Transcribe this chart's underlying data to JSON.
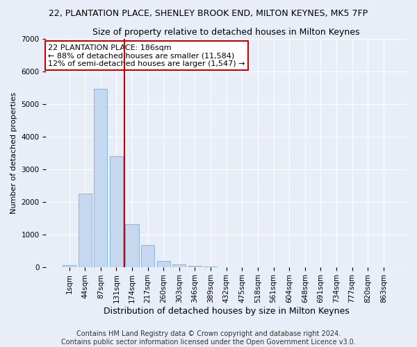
{
  "title": "22, PLANTATION PLACE, SHENLEY BROOK END, MILTON KEYNES, MK5 7FP",
  "subtitle": "Size of property relative to detached houses in Milton Keynes",
  "xlabel": "Distribution of detached houses by size in Milton Keynes",
  "ylabel": "Number of detached properties",
  "bar_color": "#c5d8f0",
  "bar_edge_color": "#7bafd4",
  "vline_color": "#cc0000",
  "vline_pos": 3.5,
  "annotation_text": "22 PLANTATION PLACE: 186sqm\n← 88% of detached houses are smaller (11,584)\n12% of semi-detached houses are larger (1,547) →",
  "annotation_box_color": "#ffffff",
  "annotation_box_edge": "#cc0000",
  "categories": [
    "1sqm",
    "44sqm",
    "87sqm",
    "131sqm",
    "174sqm",
    "217sqm",
    "260sqm",
    "303sqm",
    "346sqm",
    "389sqm",
    "432sqm",
    "475sqm",
    "518sqm",
    "561sqm",
    "604sqm",
    "648sqm",
    "691sqm",
    "734sqm",
    "777sqm",
    "820sqm",
    "863sqm"
  ],
  "values": [
    55,
    2250,
    5450,
    3400,
    1300,
    680,
    180,
    80,
    30,
    5,
    2,
    0,
    0,
    0,
    0,
    0,
    0,
    0,
    0,
    0,
    0
  ],
  "ylim": [
    0,
    7000
  ],
  "yticks": [
    0,
    1000,
    2000,
    3000,
    4000,
    5000,
    6000,
    7000
  ],
  "footer_line1": "Contains HM Land Registry data © Crown copyright and database right 2024.",
  "footer_line2": "Contains public sector information licensed under the Open Government Licence v3.0.",
  "fig_bg_color": "#e8eef7",
  "plot_bg_color": "#e8eef7",
  "title_fontsize": 9,
  "subtitle_fontsize": 9,
  "ylabel_fontsize": 8,
  "xlabel_fontsize": 9,
  "tick_fontsize": 7.5,
  "footer_fontsize": 7,
  "annot_fontsize": 8
}
